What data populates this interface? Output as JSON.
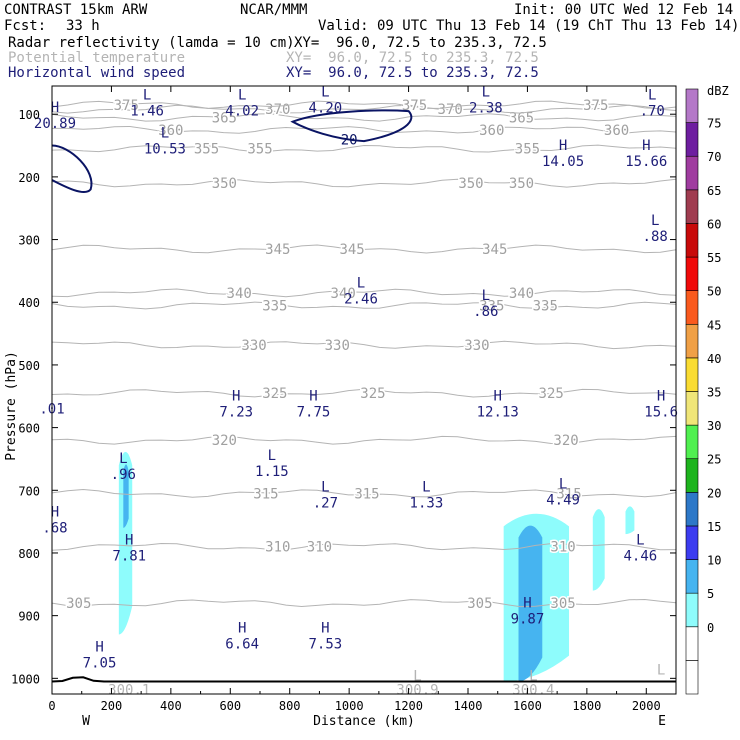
{
  "header": {
    "title": "CONTRAST 15km ARW",
    "producer": "NCAR/MMM",
    "init": "Init: 00 UTC Wed 12 Feb 14",
    "fcst_label": "Fcst:",
    "fcst_value": "33 h",
    "valid": "Valid: 09 UTC Thu 13 Feb 14 (19 ChT Thu 13 Feb 14)",
    "fields": [
      {
        "name": "Radar reflectivity (lamda = 10 cm)",
        "xy": "XY=  96.0, 72.5 to 235.3, 72.5",
        "color": "#000000"
      },
      {
        "name": "Potential temperature",
        "xy": "XY=  96.0, 72.5 to 235.3, 72.5",
        "color": "#b4b4b4"
      },
      {
        "name": "Horizontal wind speed",
        "xy": "XY=  96.0, 72.5 to 235.3, 72.5",
        "color": "#1e1e78"
      }
    ]
  },
  "chart_data": {
    "type": "contour",
    "xlabel": "Distance (km)",
    "ylabel": "Pressure (hPa)",
    "xlim": [
      0,
      2100
    ],
    "ylim": [
      1025,
      55
    ],
    "x_ticks": [
      0,
      200,
      400,
      600,
      800,
      1000,
      1200,
      1400,
      1600,
      1800,
      2000
    ],
    "y_ticks": [
      100,
      200,
      300,
      400,
      500,
      600,
      700,
      800,
      900,
      1000
    ],
    "x_end_labels": {
      "left": "W",
      "right": "E"
    },
    "theta_contours": [
      {
        "value": 305,
        "p": 880,
        "labels": [
          {
            "x": 90,
            "text": "305"
          },
          {
            "x": 1440,
            "text": "305"
          },
          {
            "x": 1720,
            "text": "305"
          }
        ]
      },
      {
        "value": 310,
        "p": 790,
        "labels": [
          {
            "x": 760,
            "text": "310"
          },
          {
            "x": 900,
            "text": "310"
          },
          {
            "x": 1720,
            "text": "310"
          }
        ]
      },
      {
        "value": 315,
        "p": 705,
        "labels": [
          {
            "x": 720,
            "text": "315"
          },
          {
            "x": 1060,
            "text": "315"
          },
          {
            "x": 1740,
            "text": "315"
          }
        ]
      },
      {
        "value": 320,
        "p": 620,
        "labels": [
          {
            "x": 580,
            "text": "320"
          },
          {
            "x": 1730,
            "text": "320"
          }
        ]
      },
      {
        "value": 325,
        "p": 545,
        "labels": [
          {
            "x": 750,
            "text": "325"
          },
          {
            "x": 1080,
            "text": "325"
          },
          {
            "x": 1680,
            "text": "325"
          }
        ]
      },
      {
        "value": 330,
        "p": 468,
        "labels": [
          {
            "x": 680,
            "text": "330"
          },
          {
            "x": 960,
            "text": "330"
          },
          {
            "x": 1430,
            "text": "330"
          }
        ]
      },
      {
        "value": 335,
        "p": 405,
        "labels": [
          {
            "x": 750,
            "text": "335"
          },
          {
            "x": 1480,
            "text": "335"
          },
          {
            "x": 1660,
            "text": "335"
          }
        ]
      },
      {
        "value": 340,
        "p": 385,
        "labels": [
          {
            "x": 630,
            "text": "340"
          },
          {
            "x": 980,
            "text": "340"
          },
          {
            "x": 1580,
            "text": "340"
          }
        ]
      },
      {
        "value": 345,
        "p": 315,
        "labels": [
          {
            "x": 760,
            "text": "345"
          },
          {
            "x": 1010,
            "text": "345"
          },
          {
            "x": 1490,
            "text": "345"
          }
        ]
      },
      {
        "value": 350,
        "p": 210,
        "labels": [
          {
            "x": 580,
            "text": "350"
          },
          {
            "x": 1410,
            "text": "350"
          },
          {
            "x": 1580,
            "text": "350"
          }
        ]
      },
      {
        "value": 355,
        "p": 155,
        "labels": [
          {
            "x": 520,
            "text": "355"
          },
          {
            "x": 700,
            "text": "355"
          },
          {
            "x": 1600,
            "text": "355"
          }
        ]
      },
      {
        "value": 360,
        "p": 125,
        "labels": [
          {
            "x": 400,
            "text": "360"
          },
          {
            "x": 1480,
            "text": "360"
          },
          {
            "x": 1900,
            "text": "360"
          }
        ]
      },
      {
        "value": 365,
        "p": 105,
        "labels": [
          {
            "x": 580,
            "text": "365"
          },
          {
            "x": 1580,
            "text": "365"
          }
        ]
      },
      {
        "value": 370,
        "p": 92,
        "labels": [
          {
            "x": 760,
            "text": "370"
          },
          {
            "x": 1340,
            "text": "370"
          }
        ]
      },
      {
        "value": 375,
        "p": 85,
        "labels": [
          {
            "x": 250,
            "text": "375"
          },
          {
            "x": 1220,
            "text": "375"
          },
          {
            "x": 1830,
            "text": "375"
          }
        ]
      }
    ],
    "wind_labels": [
      {
        "x": 10,
        "p": 100,
        "hl": "H",
        "value": "20.89"
      },
      {
        "x": 320,
        "p": 80,
        "hl": "L",
        "value": "1.46"
      },
      {
        "x": 640,
        "p": 80,
        "hl": "L",
        "value": "4.02"
      },
      {
        "x": 920,
        "p": 75,
        "hl": "L",
        "value": "4.20"
      },
      {
        "x": 1460,
        "p": 75,
        "hl": "L",
        "value": "2.38"
      },
      {
        "x": 2020,
        "p": 80,
        "hl": "L",
        "value": ".70"
      },
      {
        "x": 380,
        "p": 140,
        "hl": "L",
        "value": "10.53"
      },
      {
        "x": 1720,
        "p": 160,
        "hl": "H",
        "value": "14.05"
      },
      {
        "x": 2000,
        "p": 160,
        "hl": "H",
        "value": "15.66"
      },
      {
        "x": 2030,
        "p": 280,
        "hl": "L",
        "value": ".88"
      },
      {
        "x": 1040,
        "p": 380,
        "hl": "L",
        "value": "2.46"
      },
      {
        "x": 1460,
        "p": 400,
        "hl": "L",
        "value": ".86"
      },
      {
        "x": 0,
        "p": 555,
        "hl": "",
        "value": ".01"
      },
      {
        "x": 620,
        "p": 560,
        "hl": "H",
        "value": "7.23"
      },
      {
        "x": 880,
        "p": 560,
        "hl": "H",
        "value": "7.75"
      },
      {
        "x": 1500,
        "p": 560,
        "hl": "H",
        "value": "12.13"
      },
      {
        "x": 2050,
        "p": 560,
        "hl": "H",
        "value": "15.6"
      },
      {
        "x": 240,
        "p": 660,
        "hl": "L",
        "value": ".96"
      },
      {
        "x": 740,
        "p": 655,
        "hl": "L",
        "value": "1.15"
      },
      {
        "x": 920,
        "p": 705,
        "hl": "L",
        "value": ".27"
      },
      {
        "x": 1260,
        "p": 705,
        "hl": "L",
        "value": "1.33"
      },
      {
        "x": 1720,
        "p": 700,
        "hl": "L",
        "value": "4.49"
      },
      {
        "x": 10,
        "p": 745,
        "hl": "H",
        "value": ".68"
      },
      {
        "x": 260,
        "p": 790,
        "hl": "H",
        "value": "7.81"
      },
      {
        "x": 1980,
        "p": 790,
        "hl": "L",
        "value": "4.46"
      },
      {
        "x": 1600,
        "p": 890,
        "hl": "H",
        "value": "9.87"
      },
      {
        "x": 160,
        "p": 960,
        "hl": "H",
        "value": "7.05"
      },
      {
        "x": 640,
        "p": 930,
        "hl": "H",
        "value": "6.64"
      },
      {
        "x": 920,
        "p": 930,
        "hl": "H",
        "value": "7.53"
      }
    ],
    "wind_contour_label": {
      "x": 1000,
      "p": 140,
      "text": "20"
    },
    "surface_labels": [
      {
        "x": 260,
        "p": 1010,
        "hl": "",
        "value": "300.1"
      },
      {
        "x": 1230,
        "p": 1010,
        "hl": "L",
        "value": "300.9"
      },
      {
        "x": 1620,
        "p": 1010,
        "hl": "L",
        "value": "300.4"
      },
      {
        "x": 2050,
        "p": 1000,
        "hl": "L",
        "value": ""
      }
    ],
    "colorbar": {
      "unit": "dBZ",
      "levels": [
        -5,
        0,
        5,
        10,
        15,
        20,
        25,
        30,
        35,
        40,
        45,
        50,
        55,
        60,
        65,
        70,
        75,
        80
      ],
      "colors": [
        "#ffffff",
        "#ffffff",
        "#8efcfc",
        "#46b4f0",
        "#3c3cf0",
        "#2d78c8",
        "#1eb41e",
        "#50f050",
        "#f0e678",
        "#fadc32",
        "#f0a046",
        "#fa5a1e",
        "#f00a0a",
        "#c80a0a",
        "#a03c50",
        "#a03ca0",
        "#6e1ea0",
        "#b478c8"
      ],
      "labels": [
        "0",
        "5",
        "10",
        "15",
        "20",
        "25",
        "30",
        "35",
        "40",
        "45",
        "50",
        "55",
        "60",
        "65",
        "70",
        "75"
      ]
    },
    "reflectivity": [
      {
        "x0": 1520,
        "x1": 1740,
        "p0": 730,
        "p1": 1005,
        "dbz": 5
      },
      {
        "x0": 1570,
        "x1": 1650,
        "p0": 750,
        "p1": 1005,
        "dbz": 10
      },
      {
        "x0": 225,
        "x1": 270,
        "p0": 630,
        "p1": 930,
        "dbz": 5
      },
      {
        "x0": 240,
        "x1": 258,
        "p0": 660,
        "p1": 760,
        "dbz": 10
      },
      {
        "x0": 1820,
        "x1": 1860,
        "p0": 730,
        "p1": 860,
        "dbz": 5
      },
      {
        "x0": 1930,
        "x1": 1960,
        "p0": 730,
        "p1": 770,
        "dbz": 5
      }
    ]
  }
}
